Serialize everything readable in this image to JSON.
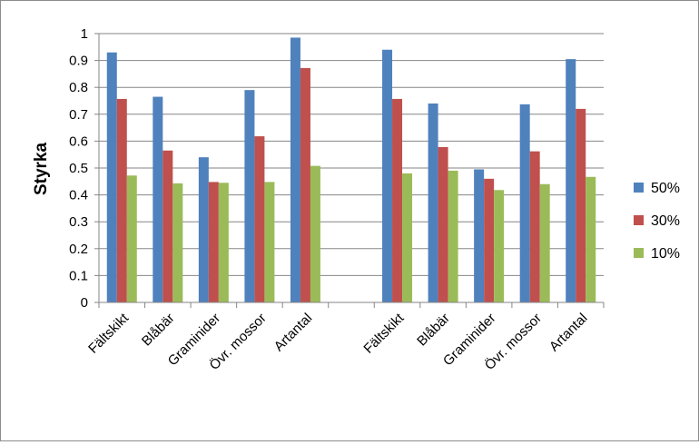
{
  "chart_data": {
    "type": "bar",
    "title": "",
    "xlabel": "",
    "ylabel": "Styrka",
    "ylim": [
      0,
      1
    ],
    "yticks": [
      "0",
      "0.1",
      "0.2",
      "0.3",
      "0.4",
      "0.5",
      "0.6",
      "0.7",
      "0.8",
      "0.9",
      "1"
    ],
    "grid": true,
    "legend_position": "right",
    "categories": [
      "Fältskikt",
      "Blåbär",
      "Graminider",
      "Övr. mossor",
      "Artantal",
      "",
      "Fältskikt",
      "Blåbär",
      "Graminider",
      "Övr. mossor",
      "Artantal"
    ],
    "series": [
      {
        "name": "50%",
        "color": "#4f81bd",
        "values": [
          0.93,
          0.765,
          0.54,
          0.79,
          0.985,
          null,
          0.94,
          0.74,
          0.495,
          0.737,
          0.905
        ]
      },
      {
        "name": "30%",
        "color": "#c0504d",
        "values": [
          0.757,
          0.565,
          0.448,
          0.618,
          0.872,
          null,
          0.757,
          0.578,
          0.46,
          0.562,
          0.72
        ]
      },
      {
        "name": "10%",
        "color": "#9bbb59",
        "values": [
          0.472,
          0.443,
          0.445,
          0.448,
          0.508,
          null,
          0.48,
          0.49,
          0.418,
          0.44,
          0.467
        ]
      }
    ]
  }
}
